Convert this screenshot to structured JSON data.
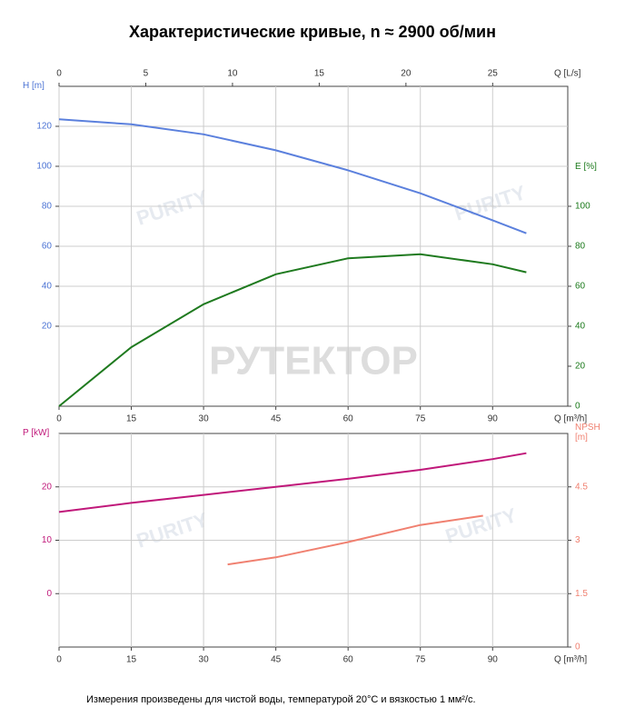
{
  "title": "Характеристические кривые, n ≈ 2900 об/мин",
  "footnote": "Измерения произведены для чистой воды, температурой 20°C и вязкостью 1 мм²/с.",
  "watermark": "РУТЕКТОР",
  "logo": "PURITY",
  "chart_data": [
    {
      "type": "line",
      "xlabel": "Q [m³/h]",
      "xlim": [
        0,
        105.6
      ],
      "xticks": [
        0,
        15,
        30,
        45,
        60,
        75,
        90
      ],
      "x2label": "Q [L/s]",
      "x2lim": [
        0,
        29.33
      ],
      "x2ticks": [
        0,
        5,
        10,
        15,
        20,
        25
      ],
      "ylabel": "H [m]",
      "ylim": [
        -20,
        140
      ],
      "yticks": [
        20,
        40,
        60,
        80,
        100,
        120
      ],
      "ycolor": "#4a72d4",
      "y2label": "E [%]",
      "y2lim": [
        0,
        160
      ],
      "y2ticks": [
        0,
        20,
        40,
        60,
        80,
        100
      ],
      "y2color": "#1c7a1c",
      "grid": true,
      "series": [
        {
          "name": "H",
          "color": "#5b80dd",
          "x": [
            0,
            15,
            30,
            45,
            60,
            75,
            90,
            97
          ],
          "values": [
            123.5,
            121,
            116,
            108,
            98,
            86.5,
            73,
            66.5
          ]
        },
        {
          "name": "E",
          "color": "#1f7a1f",
          "axis": "y2",
          "x": [
            0,
            15,
            30,
            45,
            60,
            75,
            90,
            97
          ],
          "values": [
            0,
            29.5,
            51,
            66,
            74,
            76,
            71,
            67
          ]
        }
      ]
    },
    {
      "type": "line",
      "xlabel": "Q [m³/h]",
      "xlim": [
        0,
        105.6
      ],
      "xticks": [
        0,
        15,
        30,
        45,
        60,
        75,
        90
      ],
      "ylabel": "P [kW]",
      "ylim": [
        -10,
        30
      ],
      "yticks": [
        0,
        10,
        20
      ],
      "ycolor": "#c0187a",
      "y2label": "NPSH [m]",
      "y2lim": [
        0,
        6
      ],
      "y2ticks": [
        0,
        1.5,
        3,
        4.5
      ],
      "y2color": "#f08070",
      "grid": true,
      "series": [
        {
          "name": "P",
          "color": "#c0187a",
          "x": [
            0,
            15,
            30,
            45,
            60,
            75,
            90,
            97
          ],
          "values": [
            15.3,
            17,
            18.5,
            20,
            21.5,
            23.2,
            25.2,
            26.3
          ]
        },
        {
          "name": "NPSH",
          "color": "#f08070",
          "axis": "y2",
          "x": [
            35,
            45,
            60,
            75,
            88
          ],
          "values": [
            2.32,
            2.52,
            2.95,
            3.43,
            3.69
          ]
        }
      ]
    }
  ]
}
